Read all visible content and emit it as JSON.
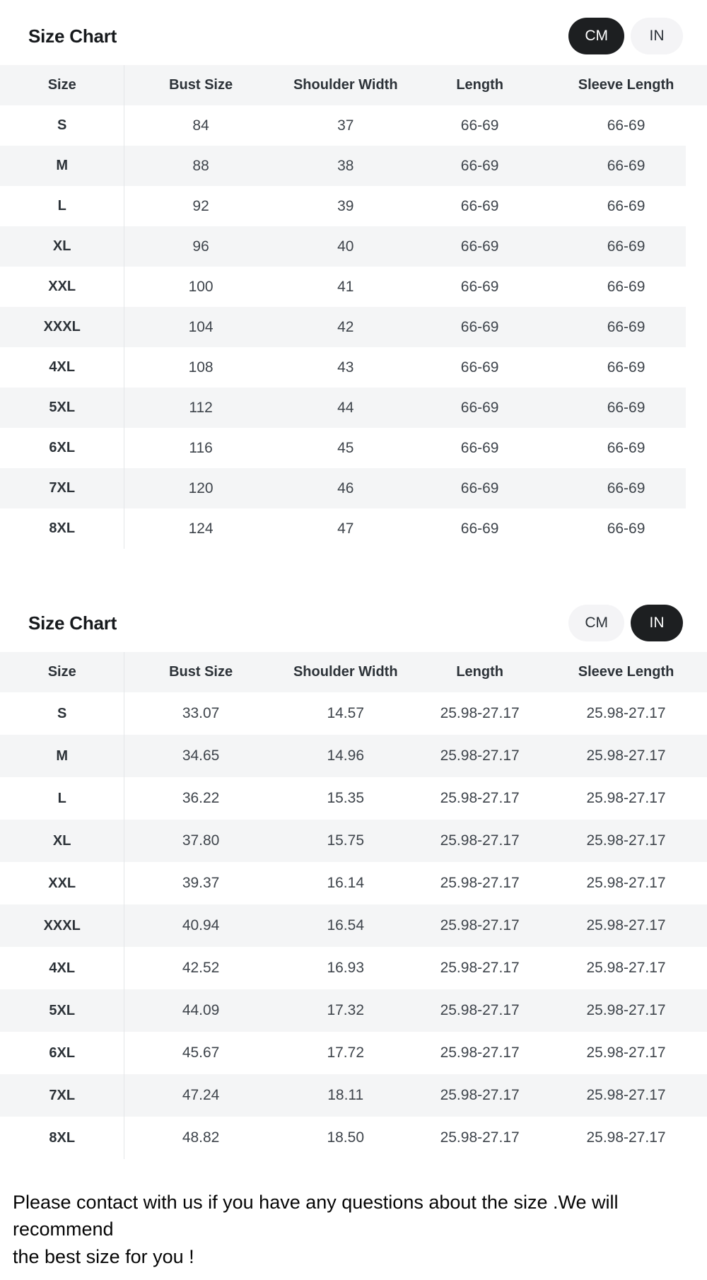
{
  "columns": [
    "Size",
    "Bust Size",
    "Shoulder Width",
    "Length",
    "Sleeve Length"
  ],
  "column_widths_pct": [
    17.6,
    21.6,
    19.4,
    18.6,
    22.8
  ],
  "colors": {
    "active_pill_bg": "#1d1f21",
    "active_pill_text": "#ffffff",
    "inactive_pill_bg": "#f4f4f6",
    "row_stripe": "#f4f5f6",
    "divider": "#e4e6e8"
  },
  "sections": [
    {
      "title": "Size Chart",
      "unit": "cm",
      "toggle": {
        "cm": "CM",
        "in": "IN",
        "active": "CM"
      },
      "rows": [
        [
          "S",
          "84",
          "37",
          "66-69",
          "66-69"
        ],
        [
          "M",
          "88",
          "38",
          "66-69",
          "66-69"
        ],
        [
          "L",
          "92",
          "39",
          "66-69",
          "66-69"
        ],
        [
          "XL",
          "96",
          "40",
          "66-69",
          "66-69"
        ],
        [
          "XXL",
          "100",
          "41",
          "66-69",
          "66-69"
        ],
        [
          "XXXL",
          "104",
          "42",
          "66-69",
          "66-69"
        ],
        [
          "4XL",
          "108",
          "43",
          "66-69",
          "66-69"
        ],
        [
          "5XL",
          "112",
          "44",
          "66-69",
          "66-69"
        ],
        [
          "6XL",
          "116",
          "45",
          "66-69",
          "66-69"
        ],
        [
          "7XL",
          "120",
          "46",
          "66-69",
          "66-69"
        ],
        [
          "8XL",
          "124",
          "47",
          "66-69",
          "66-69"
        ]
      ]
    },
    {
      "title": "Size Chart",
      "unit": "in",
      "toggle": {
        "cm": "CM",
        "in": "IN",
        "active": "IN"
      },
      "rows": [
        [
          "S",
          "33.07",
          "14.57",
          "25.98-27.17",
          "25.98-27.17"
        ],
        [
          "M",
          "34.65",
          "14.96",
          "25.98-27.17",
          "25.98-27.17"
        ],
        [
          "L",
          "36.22",
          "15.35",
          "25.98-27.17",
          "25.98-27.17"
        ],
        [
          "XL",
          "37.80",
          "15.75",
          "25.98-27.17",
          "25.98-27.17"
        ],
        [
          "XXL",
          "39.37",
          "16.14",
          "25.98-27.17",
          "25.98-27.17"
        ],
        [
          "XXXL",
          "40.94",
          "16.54",
          "25.98-27.17",
          "25.98-27.17"
        ],
        [
          "4XL",
          "42.52",
          "16.93",
          "25.98-27.17",
          "25.98-27.17"
        ],
        [
          "5XL",
          "44.09",
          "17.32",
          "25.98-27.17",
          "25.98-27.17"
        ],
        [
          "6XL",
          "45.67",
          "17.72",
          "25.98-27.17",
          "25.98-27.17"
        ],
        [
          "7XL",
          "47.24",
          "18.11",
          "25.98-27.17",
          "25.98-27.17"
        ],
        [
          "8XL",
          "48.82",
          "18.50",
          "25.98-27.17",
          "25.98-27.17"
        ]
      ]
    }
  ],
  "footer": {
    "line1": "Please contact with us if you have any questions about the size .We will recommend",
    "line2": "the best size for you !"
  }
}
